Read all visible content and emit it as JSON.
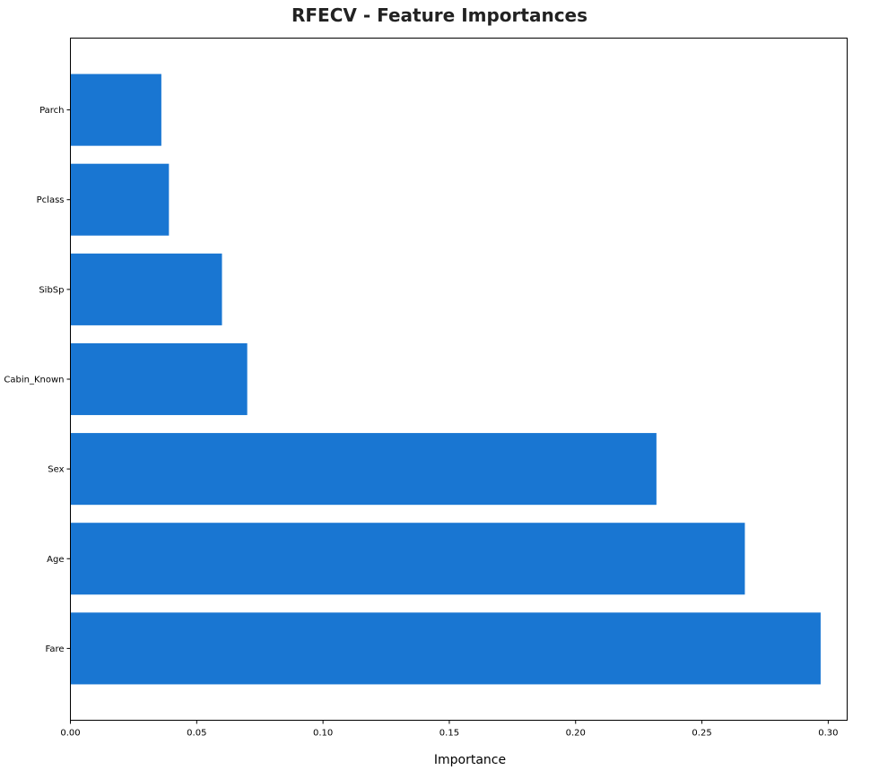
{
  "chart_data": {
    "type": "bar",
    "orientation": "horizontal",
    "title": "RFECV - Feature Importances",
    "xlabel": "Importance",
    "ylabel": "",
    "xlim": [
      0,
      0.3075
    ],
    "xticks": [
      "0.00",
      "0.05",
      "0.10",
      "0.15",
      "0.20",
      "0.25",
      "0.30"
    ],
    "categories": [
      "Fare",
      "Age",
      "Sex",
      "Cabin_Known",
      "SibSp",
      "Pclass",
      "Parch"
    ],
    "values": [
      0.297,
      0.267,
      0.232,
      0.07,
      0.06,
      0.039,
      0.036
    ],
    "bar_color": "#1976d2",
    "grid": false,
    "legend": "none"
  }
}
